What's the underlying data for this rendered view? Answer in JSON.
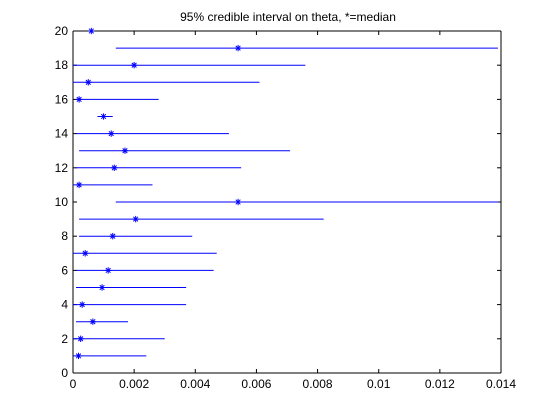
{
  "chart_data": {
    "type": "interval",
    "title": "95% credible interval on theta, *=median",
    "xlabel": "",
    "ylabel": "",
    "xlim": [
      0,
      0.014
    ],
    "ylim": [
      0,
      20
    ],
    "xticks": [
      0,
      0.002,
      0.004,
      0.006,
      0.008,
      0.01,
      0.012,
      0.014
    ],
    "xtick_labels": [
      "0",
      "0.002",
      "0.004",
      "0.006",
      "0.008",
      "0.01",
      "0.012",
      "0.014"
    ],
    "yticks": [
      0,
      2,
      4,
      6,
      8,
      10,
      12,
      14,
      16,
      18,
      20
    ],
    "ytick_labels": [
      "0",
      "2",
      "4",
      "6",
      "8",
      "10",
      "12",
      "14",
      "16",
      "18",
      "20"
    ],
    "grid": false,
    "colors": {
      "interval": "#0000ff",
      "median": "#0000ff",
      "axes": "#000000"
    },
    "intervals": [
      {
        "y": 1,
        "lower": 0.0,
        "upper": 0.0024,
        "median": 0.00018
      },
      {
        "y": 2,
        "lower": 0.0,
        "upper": 0.003,
        "median": 0.00025
      },
      {
        "y": 3,
        "lower": 0.0001,
        "upper": 0.0018,
        "median": 0.00065
      },
      {
        "y": 4,
        "lower": 0.0,
        "upper": 0.0037,
        "median": 0.0003
      },
      {
        "y": 5,
        "lower": 0.0001,
        "upper": 0.0037,
        "median": 0.00095
      },
      {
        "y": 6,
        "lower": 0.0001,
        "upper": 0.0046,
        "median": 0.00115
      },
      {
        "y": 7,
        "lower": 0.0,
        "upper": 0.0047,
        "median": 0.0004
      },
      {
        "y": 8,
        "lower": 0.0002,
        "upper": 0.0039,
        "median": 0.0013
      },
      {
        "y": 9,
        "lower": 0.0002,
        "upper": 0.0082,
        "median": 0.00205
      },
      {
        "y": 10,
        "lower": 0.0014,
        "upper": 0.0139,
        "median": 0.0054
      },
      {
        "y": 11,
        "lower": 0.0,
        "upper": 0.0026,
        "median": 0.0002
      },
      {
        "y": 12,
        "lower": 0.0001,
        "upper": 0.0055,
        "median": 0.00135
      },
      {
        "y": 13,
        "lower": 0.0002,
        "upper": 0.0071,
        "median": 0.0017
      },
      {
        "y": 14,
        "lower": 0.0001,
        "upper": 0.0051,
        "median": 0.00125
      },
      {
        "y": 15,
        "lower": 0.0008,
        "upper": 0.0013,
        "median": 0.001
      },
      {
        "y": 16,
        "lower": 0.0001,
        "upper": 0.0028,
        "median": 0.0002
      },
      {
        "y": 17,
        "lower": 0.0,
        "upper": 0.0061,
        "median": 0.0005
      },
      {
        "y": 18,
        "lower": 0.0,
        "upper": 0.0076,
        "median": 0.002
      },
      {
        "y": 19,
        "lower": 0.0014,
        "upper": 0.0139,
        "median": 0.0054
      },
      {
        "y": 20,
        "lower": 0.0005,
        "upper": 0.0007,
        "median": 0.0006
      }
    ]
  }
}
